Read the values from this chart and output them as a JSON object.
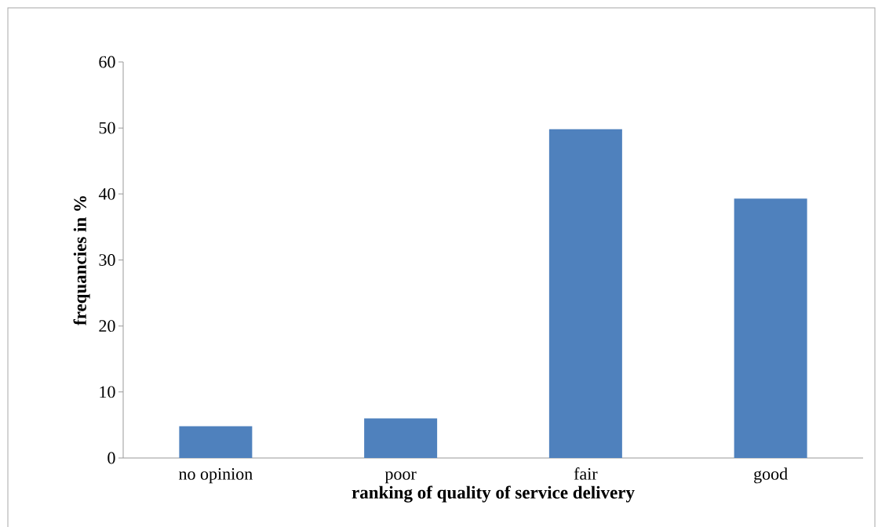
{
  "chart_data": {
    "type": "bar",
    "xlabel": "ranking of quality of service delivery",
    "ylabel": "frequancies in %",
    "categories": [
      "no opinion",
      "poor",
      "fair",
      "good"
    ],
    "values": [
      4.8,
      6,
      49.8,
      39.3
    ],
    "color": "#4f81bd",
    "ylim": [
      0,
      60
    ],
    "yticks": [
      0,
      10,
      20,
      30,
      40,
      50,
      60
    ],
    "grid": false
  }
}
